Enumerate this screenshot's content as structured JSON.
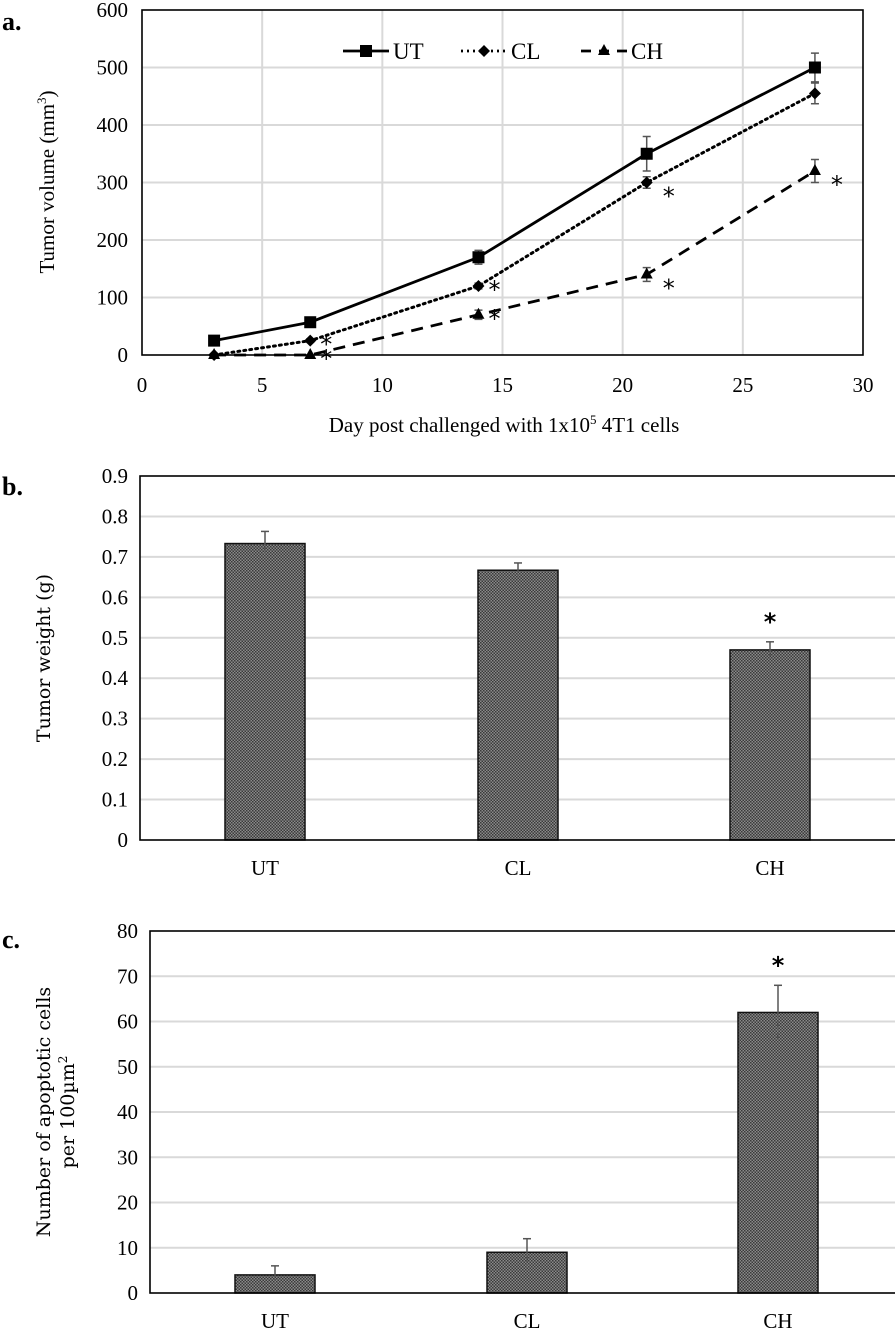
{
  "chart_data": [
    {
      "panel": "a.",
      "type": "line",
      "title": "",
      "xlabel": "Day post challenged with 1x10",
      "xlabel_superscript": "5",
      "xlabel_suffix": " 4T1 cells",
      "ylabel": "Tumor volume (mm",
      "ylabel_superscript": "3",
      "ylabel_suffix": ")",
      "xlim": [
        0,
        30
      ],
      "ylim": [
        0,
        600
      ],
      "xticks": [
        0,
        5,
        10,
        15,
        20,
        25,
        30
      ],
      "yticks": [
        0,
        100,
        200,
        300,
        400,
        500,
        600
      ],
      "grid": true,
      "legend_position": "top-center",
      "x": [
        3,
        7,
        14,
        21,
        28
      ],
      "series": [
        {
          "name": "UT",
          "style": "solid",
          "marker": "square",
          "values": [
            25,
            57,
            170,
            350,
            500
          ],
          "errors": [
            0,
            5,
            12,
            30,
            25
          ],
          "significant": [
            false,
            false,
            false,
            false,
            false
          ]
        },
        {
          "name": "CL",
          "style": "dotted",
          "marker": "diamond",
          "values": [
            0,
            25,
            120,
            300,
            455
          ],
          "errors": [
            0,
            3,
            5,
            10,
            18
          ],
          "significant": [
            false,
            true,
            true,
            true,
            false
          ]
        },
        {
          "name": "CH",
          "style": "dashed",
          "marker": "triangle",
          "values": [
            0,
            0,
            70,
            140,
            320
          ],
          "errors": [
            0,
            0,
            8,
            12,
            20
          ],
          "significant": [
            false,
            true,
            true,
            true,
            true
          ]
        }
      ],
      "significance_marker": "*"
    },
    {
      "panel": "b.",
      "type": "bar",
      "title": "",
      "xlabel": "",
      "ylabel": "Tumor weight (g)",
      "ylim": [
        0,
        0.9
      ],
      "yticks": [
        "0",
        "0.1",
        "0.2",
        "0.3",
        "0.4",
        "0.5",
        "0.6",
        "0.7",
        "0.8",
        "0.9"
      ],
      "grid": true,
      "categories": [
        "UT",
        "CL",
        "CH"
      ],
      "values": [
        0.733,
        0.667,
        0.47
      ],
      "errors": [
        0.03,
        0.018,
        0.02
      ],
      "significant": [
        false,
        false,
        true
      ],
      "significance_marker": "*"
    },
    {
      "panel": "c.",
      "type": "bar",
      "title": "",
      "xlabel": "",
      "ylabel_line1": "Number of apoptotic cells",
      "ylabel_line2": "per 100µm",
      "ylabel_superscript": "2",
      "ylim": [
        0,
        80
      ],
      "yticks": [
        "0",
        "10",
        "20",
        "30",
        "40",
        "50",
        "60",
        "70",
        "80"
      ],
      "grid": true,
      "categories": [
        "UT",
        "CL",
        "CH"
      ],
      "values": [
        4,
        9,
        62
      ],
      "errors": [
        2,
        3,
        6
      ],
      "significant": [
        false,
        false,
        true
      ],
      "significance_marker": "*"
    }
  ]
}
